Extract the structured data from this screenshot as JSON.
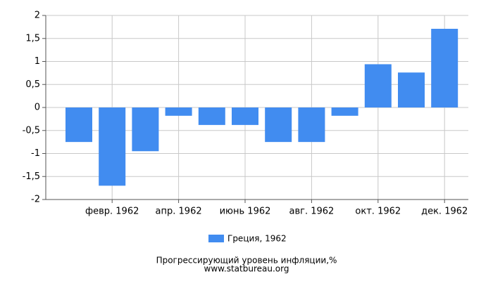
{
  "chart_data": {
    "type": "bar",
    "title": "Прогрессирующий уровень инфляции,%",
    "subtitle": "www.statbureau.org",
    "categories": [
      null,
      "февр. 1962",
      null,
      "апр. 1962",
      null,
      "июнь 1962",
      null,
      "авг. 1962",
      null,
      "окт. 1962",
      null,
      "дек. 1962"
    ],
    "series": [
      {
        "name": "Греция, 1962",
        "color": "#418cf0",
        "values": [
          -0.75,
          -1.7,
          -0.95,
          -0.18,
          -0.38,
          -0.38,
          -0.75,
          -0.75,
          -0.18,
          0.94,
          0.76,
          1.71
        ]
      }
    ],
    "ylim": [
      -2,
      2
    ],
    "yticks": [
      -2,
      {
        "value": -1.5,
        "label": "-1,5"
      },
      -1,
      {
        "value": -0.5,
        "label": "-0,5"
      },
      0,
      {
        "value": 0.5,
        "label": "0,5"
      },
      1,
      {
        "value": 1.5,
        "label": "1,5"
      },
      2
    ],
    "grid": true
  }
}
